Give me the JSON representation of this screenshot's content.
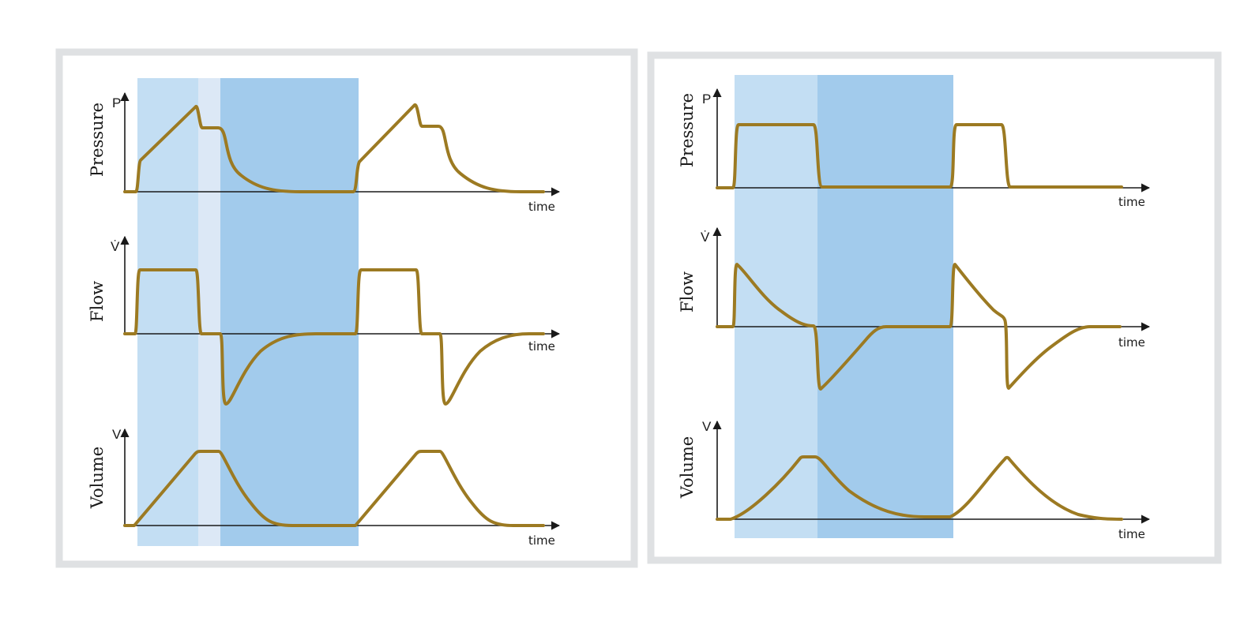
{
  "colors": {
    "frame": "#dfe1e3",
    "inspiration_band": "#c3def3",
    "pause_band": "#dce8f6",
    "expiration_band": "#a2cbec",
    "curve": "#9c7a22",
    "axis": "#1a1a1a"
  },
  "panels": [
    {
      "id": "volume-controlled",
      "rows": [
        {
          "id": "pressure",
          "label": "Pressure",
          "axis_symbol": "P",
          "axis_end_label": "time"
        },
        {
          "id": "flow",
          "label": "Flow",
          "axis_symbol": "V̇",
          "axis_end_label": "time"
        },
        {
          "id": "volume",
          "label": "Volume",
          "axis_symbol": "V",
          "axis_end_label": "time"
        }
      ]
    },
    {
      "id": "pressure-controlled",
      "rows": [
        {
          "id": "pressure",
          "label": "Pressure",
          "axis_symbol": "P",
          "axis_end_label": "time"
        },
        {
          "id": "flow",
          "label": "Flow",
          "axis_symbol": "V̇",
          "axis_end_label": "time"
        },
        {
          "id": "volume",
          "label": "Volume",
          "axis_symbol": "V",
          "axis_end_label": "time"
        }
      ]
    }
  ]
}
